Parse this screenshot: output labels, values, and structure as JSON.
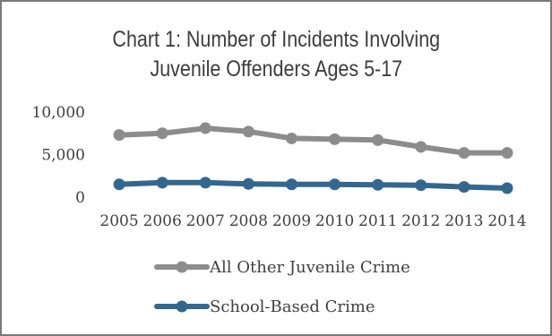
{
  "chart_data": {
    "type": "line",
    "title_line1": "Chart 1: Number of Incidents Involving",
    "title_line2": "Juvenile Offenders Ages 5-17",
    "xlabel": "",
    "ylabel": "",
    "categories": [
      "2005",
      "2006",
      "2007",
      "2008",
      "2009",
      "2010",
      "2011",
      "2012",
      "2013",
      "2014"
    ],
    "ylim": [
      0,
      10000
    ],
    "yticks": [
      0,
      5000,
      10000
    ],
    "ytick_labels": [
      "0",
      "5,000",
      "10,000"
    ],
    "grid": false,
    "legend_position": "bottom",
    "series": [
      {
        "name": "All Other Juvenile Crime",
        "color": "#8c8c8c",
        "values": [
          7300,
          7500,
          8100,
          7700,
          6900,
          6800,
          6700,
          5900,
          5200,
          5200
        ]
      },
      {
        "name": "School-Based Crime",
        "color": "#34678f",
        "values": [
          1500,
          1700,
          1700,
          1550,
          1500,
          1500,
          1450,
          1400,
          1200,
          1050
        ]
      }
    ]
  }
}
